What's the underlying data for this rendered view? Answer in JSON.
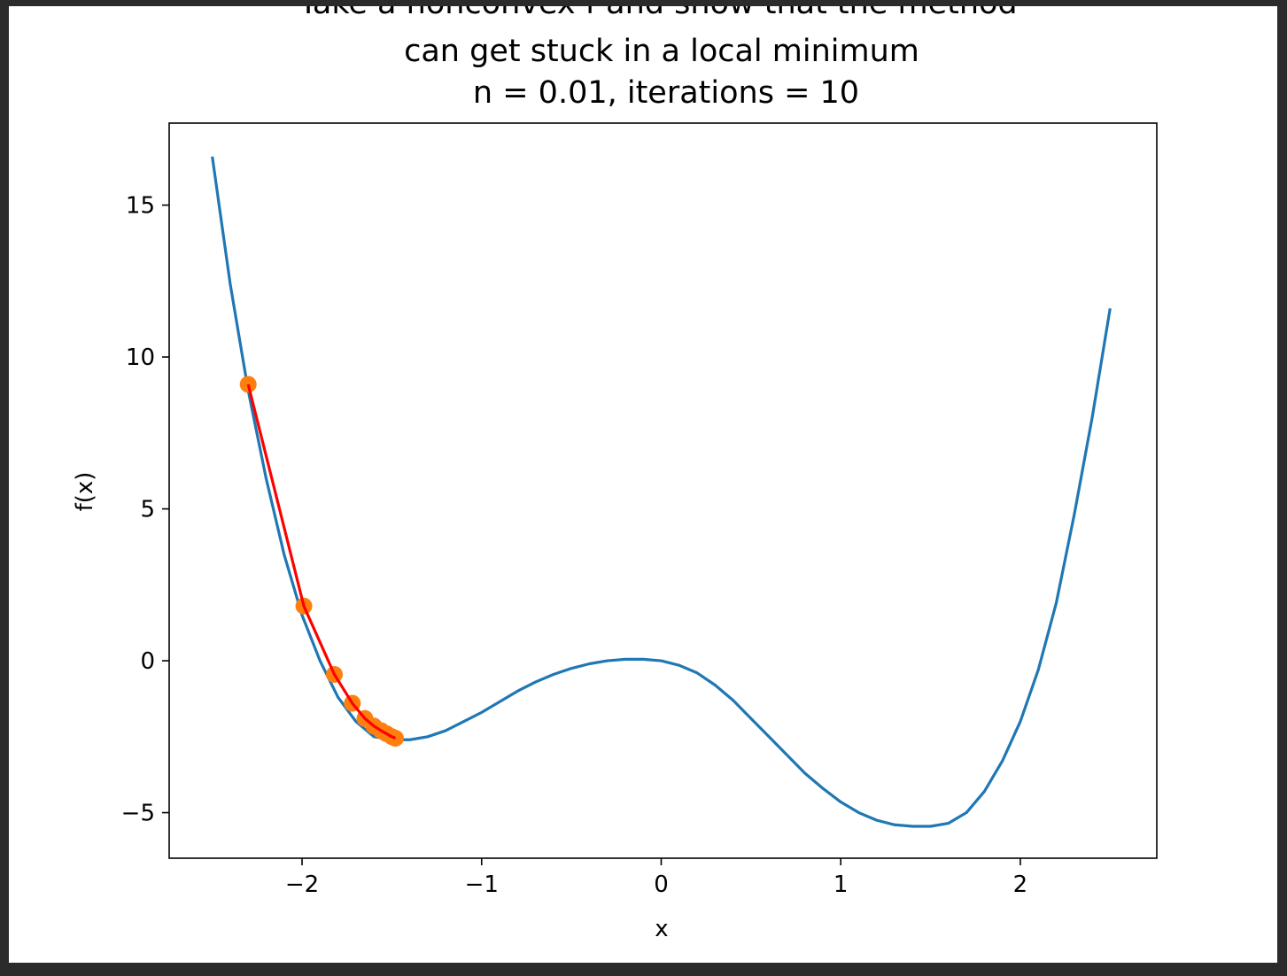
{
  "chart_data": {
    "type": "line",
    "title_lines": [
      "Take a nonconvex f and show that the method",
      "can get stuck in a local minimum",
      "n = 0.01, iterations = 10"
    ],
    "xlabel": "x",
    "ylabel": "f(x)",
    "xlim": [
      -2.74,
      2.76
    ],
    "ylim": [
      -6.5,
      17.7
    ],
    "xticks": [
      -2,
      -1,
      0,
      1,
      2
    ],
    "xtick_labels": [
      "−2",
      "−1",
      "0",
      "1",
      "2"
    ],
    "yticks": [
      -5,
      0,
      5,
      10,
      15
    ],
    "ytick_labels": [
      "−5",
      "0",
      "5",
      "10",
      "15"
    ],
    "grid": false,
    "series": [
      {
        "style": "curve",
        "color": "#1f77b4",
        "x": [
          -2.5,
          -2.4,
          -2.3,
          -2.2,
          -2.1,
          -2.0,
          -1.9,
          -1.8,
          -1.7,
          -1.6,
          -1.5,
          -1.4,
          -1.3,
          -1.2,
          -1.1,
          -1.0,
          -0.9,
          -0.8,
          -0.7,
          -0.6,
          -0.5,
          -0.4,
          -0.3,
          -0.2,
          -0.1,
          0.0,
          0.1,
          0.2,
          0.3,
          0.4,
          0.5,
          0.6,
          0.7,
          0.8,
          0.9,
          1.0,
          1.1,
          1.2,
          1.3,
          1.4,
          1.5,
          1.6,
          1.7,
          1.8,
          1.9,
          2.0,
          2.1,
          2.2,
          2.3,
          2.4,
          2.5
        ],
        "y": [
          16.6,
          12.4,
          8.9,
          6.0,
          3.5,
          1.5,
          0.0,
          -1.2,
          -2.0,
          -2.5,
          -2.6,
          -2.6,
          -2.5,
          -2.3,
          -2.0,
          -1.7,
          -1.35,
          -1.0,
          -0.7,
          -0.45,
          -0.25,
          -0.1,
          0.0,
          0.05,
          0.05,
          0.0,
          -0.15,
          -0.4,
          -0.8,
          -1.3,
          -1.9,
          -2.5,
          -3.1,
          -3.7,
          -4.2,
          -4.65,
          -5.0,
          -5.25,
          -5.4,
          -5.45,
          -5.45,
          -5.35,
          -5.0,
          -4.3,
          -3.3,
          -2.0,
          -0.3,
          1.9,
          4.8,
          8.0,
          11.6
        ]
      },
      {
        "style": "path",
        "color": "#ff0000",
        "marker_color": "#ff7f0e",
        "x": [
          -2.3,
          -1.99,
          -1.82,
          -1.72,
          -1.65,
          -1.6,
          -1.56,
          -1.53,
          -1.5,
          -1.48
        ],
        "y": [
          9.1,
          1.8,
          -0.45,
          -1.4,
          -1.9,
          -2.15,
          -2.3,
          -2.4,
          -2.5,
          -2.55
        ]
      }
    ]
  }
}
